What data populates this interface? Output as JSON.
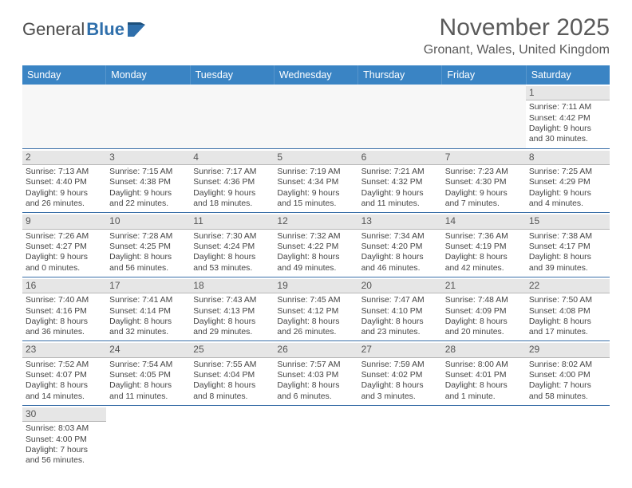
{
  "brand": {
    "general": "General",
    "blue": "Blue"
  },
  "title": "November 2025",
  "location": "Gronant, Wales, United Kingdom",
  "colors": {
    "header_bar": "#3a84c4",
    "rule": "#3a6fa8",
    "daynum_bg": "#e6e6e6"
  },
  "dow": [
    "Sunday",
    "Monday",
    "Tuesday",
    "Wednesday",
    "Thursday",
    "Friday",
    "Saturday"
  ],
  "weeks": [
    [
      null,
      null,
      null,
      null,
      null,
      null,
      {
        "n": "1",
        "sunrise": "Sunrise: 7:11 AM",
        "sunset": "Sunset: 4:42 PM",
        "day1": "Daylight: 9 hours",
        "day2": "and 30 minutes."
      }
    ],
    [
      {
        "n": "2",
        "sunrise": "Sunrise: 7:13 AM",
        "sunset": "Sunset: 4:40 PM",
        "day1": "Daylight: 9 hours",
        "day2": "and 26 minutes."
      },
      {
        "n": "3",
        "sunrise": "Sunrise: 7:15 AM",
        "sunset": "Sunset: 4:38 PM",
        "day1": "Daylight: 9 hours",
        "day2": "and 22 minutes."
      },
      {
        "n": "4",
        "sunrise": "Sunrise: 7:17 AM",
        "sunset": "Sunset: 4:36 PM",
        "day1": "Daylight: 9 hours",
        "day2": "and 18 minutes."
      },
      {
        "n": "5",
        "sunrise": "Sunrise: 7:19 AM",
        "sunset": "Sunset: 4:34 PM",
        "day1": "Daylight: 9 hours",
        "day2": "and 15 minutes."
      },
      {
        "n": "6",
        "sunrise": "Sunrise: 7:21 AM",
        "sunset": "Sunset: 4:32 PM",
        "day1": "Daylight: 9 hours",
        "day2": "and 11 minutes."
      },
      {
        "n": "7",
        "sunrise": "Sunrise: 7:23 AM",
        "sunset": "Sunset: 4:30 PM",
        "day1": "Daylight: 9 hours",
        "day2": "and 7 minutes."
      },
      {
        "n": "8",
        "sunrise": "Sunrise: 7:25 AM",
        "sunset": "Sunset: 4:29 PM",
        "day1": "Daylight: 9 hours",
        "day2": "and 4 minutes."
      }
    ],
    [
      {
        "n": "9",
        "sunrise": "Sunrise: 7:26 AM",
        "sunset": "Sunset: 4:27 PM",
        "day1": "Daylight: 9 hours",
        "day2": "and 0 minutes."
      },
      {
        "n": "10",
        "sunrise": "Sunrise: 7:28 AM",
        "sunset": "Sunset: 4:25 PM",
        "day1": "Daylight: 8 hours",
        "day2": "and 56 minutes."
      },
      {
        "n": "11",
        "sunrise": "Sunrise: 7:30 AM",
        "sunset": "Sunset: 4:24 PM",
        "day1": "Daylight: 8 hours",
        "day2": "and 53 minutes."
      },
      {
        "n": "12",
        "sunrise": "Sunrise: 7:32 AM",
        "sunset": "Sunset: 4:22 PM",
        "day1": "Daylight: 8 hours",
        "day2": "and 49 minutes."
      },
      {
        "n": "13",
        "sunrise": "Sunrise: 7:34 AM",
        "sunset": "Sunset: 4:20 PM",
        "day1": "Daylight: 8 hours",
        "day2": "and 46 minutes."
      },
      {
        "n": "14",
        "sunrise": "Sunrise: 7:36 AM",
        "sunset": "Sunset: 4:19 PM",
        "day1": "Daylight: 8 hours",
        "day2": "and 42 minutes."
      },
      {
        "n": "15",
        "sunrise": "Sunrise: 7:38 AM",
        "sunset": "Sunset: 4:17 PM",
        "day1": "Daylight: 8 hours",
        "day2": "and 39 minutes."
      }
    ],
    [
      {
        "n": "16",
        "sunrise": "Sunrise: 7:40 AM",
        "sunset": "Sunset: 4:16 PM",
        "day1": "Daylight: 8 hours",
        "day2": "and 36 minutes."
      },
      {
        "n": "17",
        "sunrise": "Sunrise: 7:41 AM",
        "sunset": "Sunset: 4:14 PM",
        "day1": "Daylight: 8 hours",
        "day2": "and 32 minutes."
      },
      {
        "n": "18",
        "sunrise": "Sunrise: 7:43 AM",
        "sunset": "Sunset: 4:13 PM",
        "day1": "Daylight: 8 hours",
        "day2": "and 29 minutes."
      },
      {
        "n": "19",
        "sunrise": "Sunrise: 7:45 AM",
        "sunset": "Sunset: 4:12 PM",
        "day1": "Daylight: 8 hours",
        "day2": "and 26 minutes."
      },
      {
        "n": "20",
        "sunrise": "Sunrise: 7:47 AM",
        "sunset": "Sunset: 4:10 PM",
        "day1": "Daylight: 8 hours",
        "day2": "and 23 minutes."
      },
      {
        "n": "21",
        "sunrise": "Sunrise: 7:48 AM",
        "sunset": "Sunset: 4:09 PM",
        "day1": "Daylight: 8 hours",
        "day2": "and 20 minutes."
      },
      {
        "n": "22",
        "sunrise": "Sunrise: 7:50 AM",
        "sunset": "Sunset: 4:08 PM",
        "day1": "Daylight: 8 hours",
        "day2": "and 17 minutes."
      }
    ],
    [
      {
        "n": "23",
        "sunrise": "Sunrise: 7:52 AM",
        "sunset": "Sunset: 4:07 PM",
        "day1": "Daylight: 8 hours",
        "day2": "and 14 minutes."
      },
      {
        "n": "24",
        "sunrise": "Sunrise: 7:54 AM",
        "sunset": "Sunset: 4:05 PM",
        "day1": "Daylight: 8 hours",
        "day2": "and 11 minutes."
      },
      {
        "n": "25",
        "sunrise": "Sunrise: 7:55 AM",
        "sunset": "Sunset: 4:04 PM",
        "day1": "Daylight: 8 hours",
        "day2": "and 8 minutes."
      },
      {
        "n": "26",
        "sunrise": "Sunrise: 7:57 AM",
        "sunset": "Sunset: 4:03 PM",
        "day1": "Daylight: 8 hours",
        "day2": "and 6 minutes."
      },
      {
        "n": "27",
        "sunrise": "Sunrise: 7:59 AM",
        "sunset": "Sunset: 4:02 PM",
        "day1": "Daylight: 8 hours",
        "day2": "and 3 minutes."
      },
      {
        "n": "28",
        "sunrise": "Sunrise: 8:00 AM",
        "sunset": "Sunset: 4:01 PM",
        "day1": "Daylight: 8 hours",
        "day2": "and 1 minute."
      },
      {
        "n": "29",
        "sunrise": "Sunrise: 8:02 AM",
        "sunset": "Sunset: 4:00 PM",
        "day1": "Daylight: 7 hours",
        "day2": "and 58 minutes."
      }
    ],
    [
      {
        "n": "30",
        "sunrise": "Sunrise: 8:03 AM",
        "sunset": "Sunset: 4:00 PM",
        "day1": "Daylight: 7 hours",
        "day2": "and 56 minutes."
      },
      null,
      null,
      null,
      null,
      null,
      null
    ]
  ]
}
